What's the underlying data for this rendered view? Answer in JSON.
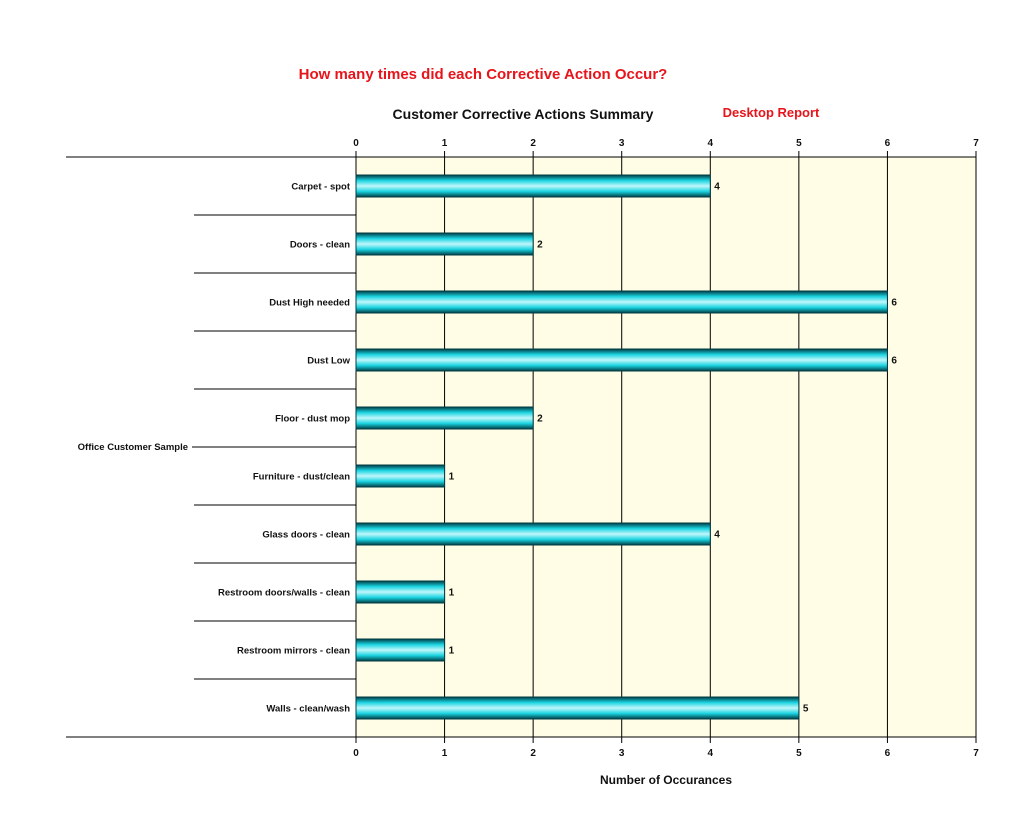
{
  "headline": "How many times did each Corrective Action Occur?",
  "report_label": "Desktop Report",
  "colors": {
    "headline": "#e8141b",
    "plot_background": "#fffde6",
    "bar_fill": "#19d4e0",
    "bar_edge": "#003c44",
    "grid": "#000000"
  },
  "chart_data": {
    "type": "bar",
    "orientation": "horizontal",
    "title": "Customer Corrective Actions Summary",
    "xlabel": "Number of Occurances",
    "group_label": "Office Customer Sample",
    "xlim": [
      0,
      7
    ],
    "xticks": [
      "0",
      "1",
      "2",
      "3",
      "4",
      "5",
      "6",
      "7"
    ],
    "grid": true,
    "axes_ticks_top_and_bottom": true,
    "categories": [
      "Carpet - spot",
      "Doors - clean",
      "Dust High needed",
      "Dust Low",
      "Floor - dust mop",
      "Furniture - dust/clean",
      "Glass doors - clean",
      "Restroom doors/walls - clean",
      "Restroom mirrors - clean",
      "Walls - clean/wash"
    ],
    "values": [
      4,
      2,
      6,
      6,
      2,
      1,
      4,
      1,
      1,
      5
    ],
    "data_labels": [
      "4",
      "2",
      "6",
      "6",
      "2",
      "1",
      "4",
      "1",
      "1",
      "5"
    ]
  }
}
